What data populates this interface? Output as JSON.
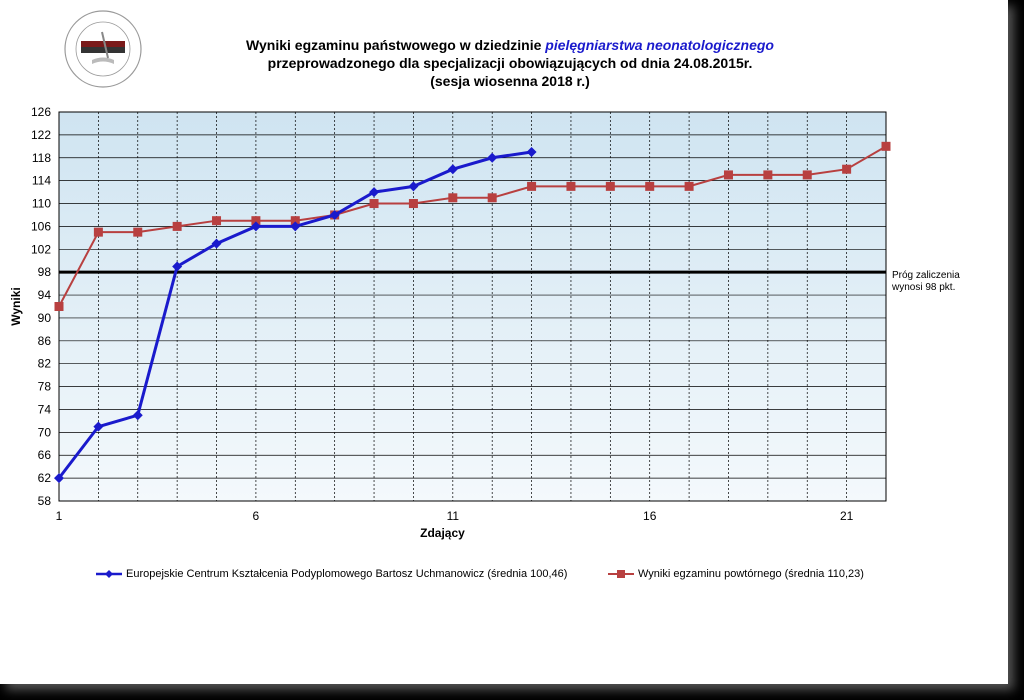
{
  "title": {
    "line1_prefix": "Wyniki egzaminu państwowego w dziedzinie ",
    "line1_highlight": "pielęgniarstwa  neonatologicznego",
    "line2": "przeprowadzonego dla specjalizacji obowiązujących od dnia 24.08.2015r.",
    "line3": "(sesja wiosenna 2018 r.)"
  },
  "logo": {
    "text": "CENTRUM KSZTAŁCENIA PODYPLOMOWEGO PIELĘGNIAREK I POŁOŻNYCH",
    "icon": "ckppip-logo"
  },
  "threshold_note": {
    "line1": "Próg zaliczenia",
    "line2": "wynosi 98 pkt."
  },
  "colors": {
    "series1": "#1a1acc",
    "series2": "#b84040",
    "threshold": "#000000",
    "plot_bg": "#dcebf4",
    "grid": "#000000"
  },
  "chart_data": {
    "type": "line",
    "title": "Wyniki egzaminu państwowego w dziedzinie pielęgniarstwa neonatologicznego przeprowadzonego dla specjalizacji obowiązujących od dnia 24.08.2015r. (sesja wiosenna 2018 r.)",
    "xlabel": "Zdający",
    "ylabel": "Wyniki",
    "xlim": [
      1,
      22
    ],
    "ylim": [
      58,
      126
    ],
    "xticks": [
      1,
      6,
      11,
      16,
      21
    ],
    "yticks": [
      58,
      62,
      66,
      70,
      74,
      78,
      82,
      86,
      90,
      94,
      98,
      102,
      106,
      110,
      114,
      118,
      122,
      126
    ],
    "grid": true,
    "legend_position": "bottom",
    "threshold": 98,
    "series": [
      {
        "name": "Europejskie Centrum Kształcenia Podyplomowego Bartosz Uchmanowicz (średnia 100,46)",
        "marker": "diamond",
        "x": [
          1,
          2,
          3,
          4,
          5,
          6,
          7,
          8,
          9,
          10,
          11,
          12,
          13
        ],
        "values": [
          62,
          71,
          73,
          99,
          103,
          106,
          106,
          108,
          112,
          113,
          116,
          118,
          119
        ]
      },
      {
        "name": "Wyniki egzaminu powtórnego (średnia 110,23)",
        "marker": "square",
        "x": [
          1,
          2,
          3,
          4,
          5,
          6,
          7,
          8,
          9,
          10,
          11,
          12,
          13,
          14,
          15,
          16,
          17,
          18,
          19,
          20,
          21,
          22
        ],
        "values": [
          92,
          105,
          105,
          106,
          107,
          107,
          107,
          108,
          110,
          110,
          111,
          111,
          113,
          113,
          113,
          113,
          113,
          115,
          115,
          115,
          116,
          120
        ]
      }
    ]
  }
}
